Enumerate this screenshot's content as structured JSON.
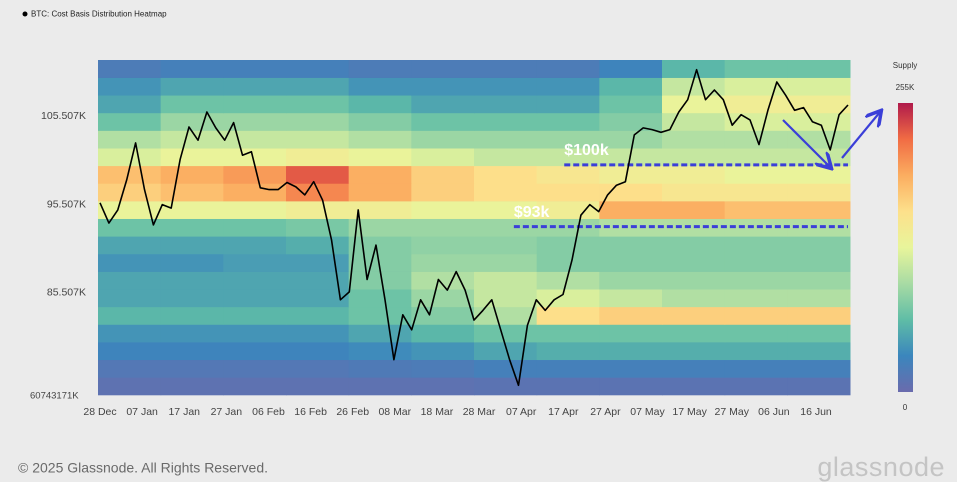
{
  "chart_data": {
    "type": "heatmap",
    "title": "BTC: Cost Basis Distribution Heatmap",
    "ylim": [
      73900,
      111900
    ],
    "yticks": [
      {
        "value": 85507,
        "label": "85.507K"
      },
      {
        "value": 95507,
        "label": "95.507K"
      },
      {
        "value": 105507,
        "label": "105.507K"
      }
    ],
    "y_bottom_label": "60743171K",
    "x_categories": [
      "28 Dec",
      "07 Jan",
      "17 Jan",
      "27 Jan",
      "06 Feb",
      "16 Feb",
      "26 Feb",
      "08 Mar",
      "18 Mar",
      "28 Mar",
      "07 Apr",
      "17 Apr",
      "27 Apr",
      "07 May",
      "17 May",
      "27 May",
      "06 Jun",
      "16 Jun"
    ],
    "heatmap": {
      "price_bins": [
        73900,
        75900,
        77900,
        79900,
        81900,
        83900,
        85900,
        87900,
        89900,
        91900,
        93900,
        95900,
        97900,
        99900,
        101900,
        103900,
        105900,
        107900,
        109900,
        111900
      ],
      "supply": [
        [
          8,
          8,
          8,
          8,
          8,
          8,
          10,
          10,
          10,
          10,
          10,
          10
        ],
        [
          15,
          15,
          15,
          15,
          18,
          20,
          25,
          25,
          25,
          25,
          25,
          25
        ],
        [
          30,
          30,
          30,
          30,
          35,
          40,
          50,
          55,
          55,
          55,
          55,
          55
        ],
        [
          40,
          40,
          40,
          40,
          50,
          60,
          70,
          70,
          70,
          70,
          70,
          70
        ],
        [
          60,
          60,
          60,
          60,
          70,
          80,
          100,
          160,
          170,
          170,
          170,
          170
        ],
        [
          50,
          50,
          50,
          50,
          70,
          90,
          110,
          120,
          110,
          100,
          100,
          100
        ],
        [
          50,
          50,
          50,
          50,
          80,
          100,
          110,
          100,
          90,
          90,
          90,
          90
        ],
        [
          40,
          40,
          45,
          45,
          80,
          90,
          90,
          80,
          80,
          80,
          80,
          80
        ],
        [
          50,
          50,
          50,
          55,
          80,
          85,
          85,
          80,
          80,
          80,
          80,
          80
        ],
        [
          70,
          70,
          70,
          75,
          90,
          90,
          90,
          90,
          100,
          100,
          100,
          100
        ],
        [
          130,
          130,
          130,
          140,
          140,
          130,
          130,
          140,
          190,
          190,
          180,
          180
        ],
        [
          170,
          180,
          190,
          210,
          190,
          170,
          160,
          160,
          160,
          150,
          150,
          150
        ],
        [
          180,
          190,
          200,
          230,
          190,
          170,
          160,
          150,
          140,
          140,
          130,
          130
        ],
        [
          120,
          130,
          130,
          140,
          130,
          120,
          110,
          110,
          110,
          110,
          110,
          110
        ],
        [
          100,
          110,
          110,
          110,
          100,
          90,
          90,
          90,
          90,
          100,
          100,
          100
        ],
        [
          70,
          90,
          90,
          90,
          80,
          70,
          70,
          70,
          80,
          110,
          120,
          120
        ],
        [
          50,
          70,
          70,
          70,
          60,
          50,
          50,
          50,
          70,
          130,
          140,
          140
        ],
        [
          40,
          50,
          50,
          50,
          40,
          40,
          40,
          40,
          60,
          110,
          120,
          120
        ],
        [
          20,
          25,
          25,
          25,
          20,
          20,
          20,
          20,
          30,
          60,
          70,
          70
        ]
      ],
      "clim": [
        0,
        255
      ],
      "colorbar_title": "Supply",
      "colorbar_ticks": [
        0,
        {
          "value": 255,
          "label": "255K"
        }
      ],
      "colors": [
        "#6a6bad",
        "#3b86bd",
        "#5fbda6",
        "#a8dba4",
        "#e8f59b",
        "#fde08b",
        "#fbad60",
        "#f16c44",
        "#b01a4b"
      ]
    },
    "series": [
      {
        "color": "#000000",
        "values": [
          95700,
          93400,
          94900,
          98300,
          102500,
          97200,
          93200,
          95500,
          95100,
          100600,
          104300,
          102800,
          106000,
          104200,
          102800,
          104800,
          101100,
          101500,
          97400,
          97200,
          97200,
          98000,
          97500,
          96600,
          98100,
          96000,
          91500,
          84700,
          85600,
          94900,
          87000,
          90900,
          84700,
          77900,
          83000,
          81300,
          84700,
          83000,
          87000,
          85800,
          87900,
          85800,
          82400,
          83500,
          84700,
          81300,
          77900,
          75000,
          81800,
          84700,
          83500,
          84700,
          85300,
          89200,
          94300,
          95500,
          94700,
          96600,
          97700,
          98100,
          103400,
          104200,
          104000,
          103700,
          104000,
          106000,
          107400,
          110800,
          107400,
          108500,
          107400,
          104500,
          105700,
          105100,
          102300,
          106200,
          109400,
          107900,
          106200,
          106500,
          104900,
          104500,
          101700,
          105700,
          106800
        ]
      }
    ],
    "annotations": [
      {
        "label": "$100k",
        "value": 100000,
        "color": "#3b3fd8"
      },
      {
        "label": "$93k",
        "value": 93000,
        "color": "#3b3fd8"
      }
    ]
  },
  "footer": {
    "copyright": "© 2025 Glassnode. All Rights Reserved.",
    "logo": "glassnode"
  }
}
